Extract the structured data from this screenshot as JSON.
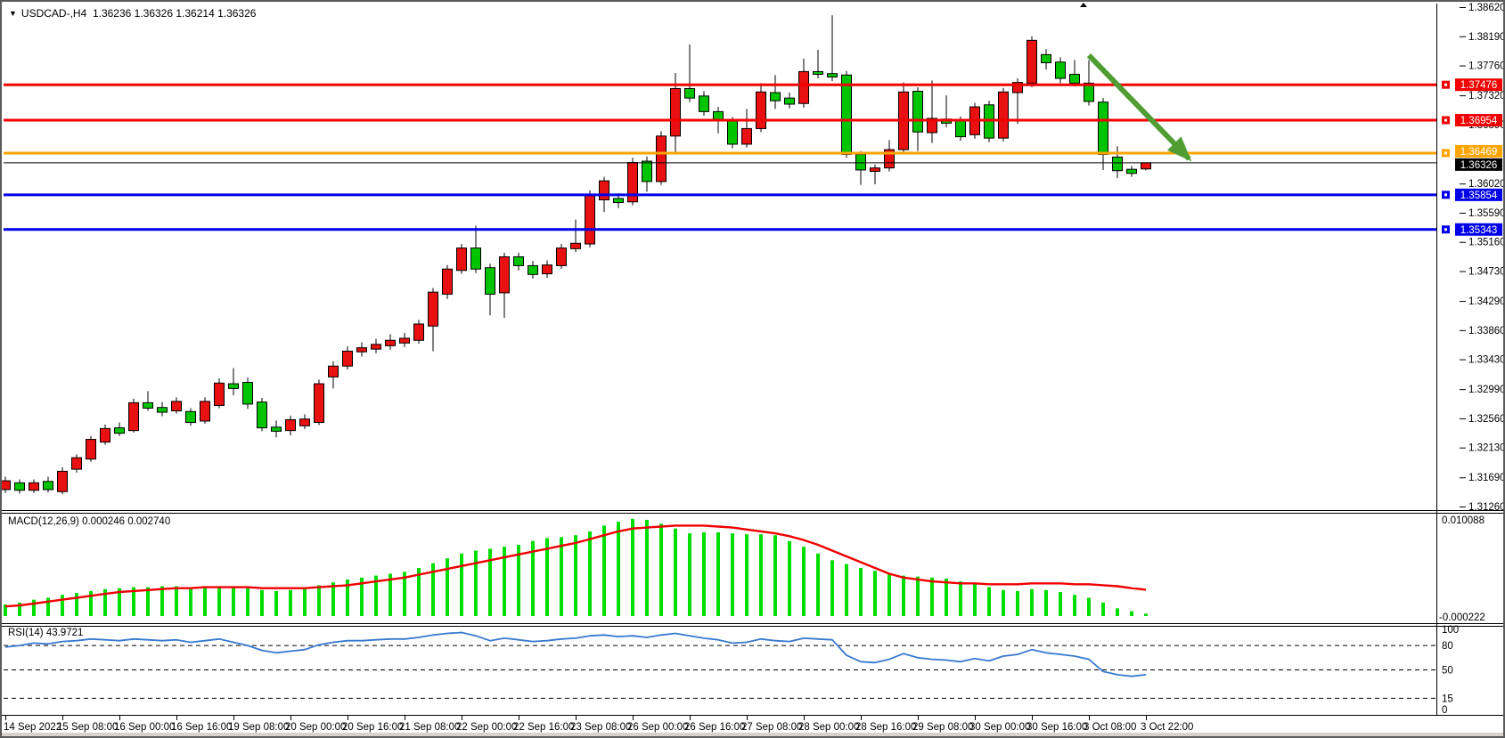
{
  "header": {
    "symbol": "USDCAD-,H4",
    "ohlc": "1.36236 1.36326 1.36214 1.36326"
  },
  "indicators": {
    "macd": {
      "label": "MACD(12,26,9) 0.000246 0.002740",
      "scale_max": "0.010088",
      "scale_min": "-0.000222"
    },
    "rsi": {
      "label": "RSI(14) 43.9721",
      "axis_labels": [
        "100",
        "80",
        "50",
        "15",
        "0"
      ],
      "level_lines": [
        80,
        50,
        15
      ]
    }
  },
  "colors": {
    "bull_candle": "#e81010",
    "bear_candle": "#00c400",
    "candle_border": "#000000",
    "macd_bar": "#00dd00",
    "macd_signal": "#f00000",
    "rsi_line": "#3779cf",
    "resistance_line": "#f00000",
    "pivot_line": "#ffa500",
    "support_line": "#0000e8",
    "bid_line": "#000000",
    "arrow": "#4f9d33"
  },
  "chart_data": {
    "type": "candlestick",
    "title": "USDCAD-,H4",
    "timeframe": "H4",
    "price_axis": {
      "max": 1.3862,
      "min": 1.3126,
      "tick_labels": [
        "1.38620",
        "1.38190",
        "1.37760",
        "1.37320",
        "1.36890",
        "1.36020",
        "1.35590",
        "1.35160",
        "1.34730",
        "1.34290",
        "1.33860",
        "1.33430",
        "1.32990",
        "1.32560",
        "1.32130",
        "1.31690",
        "1.31260"
      ]
    },
    "time_axis": {
      "labels": [
        "14 Sep 2022",
        "15 Sep 08:00",
        "16 Sep 00:00",
        "16 Sep 16:00",
        "19 Sep 08:00",
        "20 Sep 00:00",
        "20 Sep 16:00",
        "21 Sep 08:00",
        "22 Sep 00:00",
        "22 Sep 16:00",
        "23 Sep 08:00",
        "26 Sep 00:00",
        "26 Sep 16:00",
        "27 Sep 08:00",
        "28 Sep 00:00",
        "28 Sep 16:00",
        "29 Sep 08:00",
        "30 Sep 00:00",
        "30 Sep 16:00",
        "3 Oct 08:00",
        "3 Oct 22:00"
      ],
      "candles_per_tick": 4
    },
    "hlines": [
      {
        "price": 1.37476,
        "label": "1.37476",
        "role": "resistance",
        "width": 3,
        "handle": true
      },
      {
        "price": 1.36954,
        "label": "1.36954",
        "role": "resistance",
        "width": 3,
        "handle": true
      },
      {
        "price": 1.36469,
        "label": "1.36469",
        "role": "pivot",
        "width": 3,
        "handle": true
      },
      {
        "price": 1.36326,
        "label": "1.36326",
        "role": "bid",
        "width": 1,
        "handle": false
      },
      {
        "price": 1.35854,
        "label": "1.35854",
        "role": "support",
        "width": 3,
        "handle": true
      },
      {
        "price": 1.35343,
        "label": "1.35343",
        "role": "support",
        "width": 3,
        "handle": true
      }
    ],
    "arrow": {
      "from_index": 76.0,
      "from_price": 1.3791,
      "to_index": 83.4,
      "to_price": 1.3632
    },
    "candles": [
      [
        1.3151,
        1.317,
        1.3146,
        1.3164
      ],
      [
        1.3161,
        1.3166,
        1.3145,
        1.315
      ],
      [
        1.315,
        1.3166,
        1.3146,
        1.3161
      ],
      [
        1.3163,
        1.317,
        1.3147,
        1.3151
      ],
      [
        1.3148,
        1.3184,
        1.3144,
        1.3178
      ],
      [
        1.3181,
        1.3203,
        1.3176,
        1.3198
      ],
      [
        1.3196,
        1.323,
        1.3192,
        1.3225
      ],
      [
        1.3221,
        1.3247,
        1.3217,
        1.3241
      ],
      [
        1.3242,
        1.325,
        1.323,
        1.3234
      ],
      [
        1.3238,
        1.3285,
        1.3235,
        1.3279
      ],
      [
        1.3279,
        1.3296,
        1.3267,
        1.3271
      ],
      [
        1.3272,
        1.328,
        1.3259,
        1.3265
      ],
      [
        1.3267,
        1.3287,
        1.3263,
        1.3281
      ],
      [
        1.3266,
        1.3271,
        1.3245,
        1.325
      ],
      [
        1.3252,
        1.3287,
        1.3248,
        1.3281
      ],
      [
        1.3275,
        1.3315,
        1.3271,
        1.3308
      ],
      [
        1.3307,
        1.333,
        1.329,
        1.33
      ],
      [
        1.3309,
        1.3316,
        1.327,
        1.3277
      ],
      [
        1.328,
        1.3286,
        1.3237,
        1.3242
      ],
      [
        1.3243,
        1.3253,
        1.3228,
        1.3237
      ],
      [
        1.3238,
        1.326,
        1.3231,
        1.3254
      ],
      [
        1.3245,
        1.3262,
        1.324,
        1.3255
      ],
      [
        1.325,
        1.3313,
        1.3246,
        1.3307
      ],
      [
        1.3317,
        1.334,
        1.33,
        1.3333
      ],
      [
        1.3333,
        1.3362,
        1.3328,
        1.3355
      ],
      [
        1.3354,
        1.3368,
        1.3347,
        1.336
      ],
      [
        1.3358,
        1.3373,
        1.3352,
        1.3365
      ],
      [
        1.3363,
        1.338,
        1.3357,
        1.3371
      ],
      [
        1.3367,
        1.3382,
        1.3361,
        1.3374
      ],
      [
        1.3371,
        1.3401,
        1.3366,
        1.3395
      ],
      [
        1.3392,
        1.3448,
        1.3355,
        1.3442
      ],
      [
        1.3439,
        1.3482,
        1.3432,
        1.3476
      ],
      [
        1.3474,
        1.3513,
        1.3469,
        1.3507
      ],
      [
        1.3507,
        1.354,
        1.347,
        1.3476
      ],
      [
        1.3478,
        1.3484,
        1.3408,
        1.3439
      ],
      [
        1.3441,
        1.35,
        1.3404,
        1.3494
      ],
      [
        1.3494,
        1.35,
        1.3474,
        1.3481
      ],
      [
        1.3481,
        1.3488,
        1.3462,
        1.3468
      ],
      [
        1.3469,
        1.3489,
        1.3463,
        1.3482
      ],
      [
        1.3481,
        1.3513,
        1.3476,
        1.3507
      ],
      [
        1.3506,
        1.3549,
        1.3501,
        1.3514
      ],
      [
        1.3513,
        1.3592,
        1.3508,
        1.3585
      ],
      [
        1.3578,
        1.3612,
        1.356,
        1.3606
      ],
      [
        1.358,
        1.3588,
        1.3566,
        1.3574
      ],
      [
        1.3575,
        1.364,
        1.357,
        1.3633
      ],
      [
        1.3635,
        1.3642,
        1.359,
        1.3605
      ],
      [
        1.3605,
        1.3679,
        1.36,
        1.3672
      ],
      [
        1.3672,
        1.3765,
        1.3645,
        1.3742
      ],
      [
        1.3742,
        1.3807,
        1.3722,
        1.3728
      ],
      [
        1.3731,
        1.3738,
        1.3702,
        1.3708
      ],
      [
        1.3708,
        1.3715,
        1.3676,
        1.3695
      ],
      [
        1.3694,
        1.37,
        1.3654,
        1.366
      ],
      [
        1.366,
        1.3712,
        1.3655,
        1.3683
      ],
      [
        1.3683,
        1.375,
        1.3678,
        1.3737
      ],
      [
        1.3736,
        1.3762,
        1.3712,
        1.3724
      ],
      [
        1.3728,
        1.3736,
        1.3713,
        1.3719
      ],
      [
        1.372,
        1.3786,
        1.3714,
        1.3767
      ],
      [
        1.3767,
        1.3799,
        1.3757,
        1.3763
      ],
      [
        1.3764,
        1.385,
        1.3753,
        1.3759
      ],
      [
        1.3762,
        1.3768,
        1.364,
        1.3645
      ],
      [
        1.3645,
        1.365,
        1.36,
        1.3622
      ],
      [
        1.362,
        1.363,
        1.3601,
        1.3625
      ],
      [
        1.3625,
        1.3666,
        1.362,
        1.3652
      ],
      [
        1.3652,
        1.3751,
        1.3648,
        1.3737
      ],
      [
        1.3738,
        1.3744,
        1.365,
        1.3678
      ],
      [
        1.3677,
        1.3754,
        1.3662,
        1.3698
      ],
      [
        1.3697,
        1.3732,
        1.3685,
        1.3691
      ],
      [
        1.3695,
        1.3701,
        1.3665,
        1.3671
      ],
      [
        1.3674,
        1.3721,
        1.3668,
        1.3715
      ],
      [
        1.3718,
        1.3724,
        1.3663,
        1.3669
      ],
      [
        1.3669,
        1.3743,
        1.3664,
        1.3737
      ],
      [
        1.3736,
        1.3757,
        1.369,
        1.3751
      ],
      [
        1.375,
        1.3819,
        1.3744,
        1.3813
      ],
      [
        1.3792,
        1.38,
        1.377,
        1.378
      ],
      [
        1.3781,
        1.3788,
        1.375,
        1.3757
      ],
      [
        1.3763,
        1.3784,
        1.3745,
        1.375
      ],
      [
        1.375,
        1.3784,
        1.3717,
        1.3723
      ],
      [
        1.3722,
        1.3728,
        1.3622,
        1.3645
      ],
      [
        1.3641,
        1.3657,
        1.361,
        1.3621
      ],
      [
        1.3623,
        1.3628,
        1.3612,
        1.3617
      ],
      [
        1.36236,
        1.36326,
        1.36214,
        1.36326
      ]
    ],
    "macd": {
      "params": "12,26,9",
      "current_macd": 0.000246,
      "current_signal": 0.00274,
      "scale_max": 0.010088,
      "scale_min": -0.000222,
      "histogram": [
        0.0012,
        0.0014,
        0.0017,
        0.0019,
        0.0022,
        0.0024,
        0.0026,
        0.0028,
        0.0029,
        0.003,
        0.003,
        0.0031,
        0.0031,
        0.003,
        0.003,
        0.0031,
        0.003,
        0.0029,
        0.0027,
        0.0026,
        0.0027,
        0.0029,
        0.0032,
        0.0035,
        0.0038,
        0.004,
        0.0042,
        0.0044,
        0.0046,
        0.005,
        0.0055,
        0.006,
        0.0065,
        0.0068,
        0.007,
        0.0072,
        0.0074,
        0.0078,
        0.0081,
        0.0082,
        0.0084,
        0.0088,
        0.0094,
        0.0098,
        0.0101,
        0.01,
        0.0096,
        0.0091,
        0.0086,
        0.0087,
        0.0087,
        0.0086,
        0.0085,
        0.0085,
        0.0084,
        0.0078,
        0.0072,
        0.0065,
        0.0058,
        0.0054,
        0.005,
        0.0047,
        0.0044,
        0.0042,
        0.0041,
        0.004,
        0.0039,
        0.0036,
        0.0033,
        0.003,
        0.0027,
        0.0026,
        0.0028,
        0.0027,
        0.0025,
        0.0022,
        0.0019,
        0.0014,
        0.0008,
        0.0005,
        0.000246
      ],
      "signal": [
        0.001,
        0.0011,
        0.0013,
        0.0015,
        0.0017,
        0.0019,
        0.0021,
        0.0023,
        0.0025,
        0.0026,
        0.0027,
        0.0028,
        0.0029,
        0.0029,
        0.003,
        0.003,
        0.003,
        0.003,
        0.0029,
        0.0029,
        0.0029,
        0.0029,
        0.003,
        0.0031,
        0.0032,
        0.0034,
        0.0036,
        0.0038,
        0.004,
        0.0043,
        0.0046,
        0.0049,
        0.0052,
        0.0055,
        0.0058,
        0.0061,
        0.0064,
        0.0067,
        0.007,
        0.0073,
        0.0076,
        0.008,
        0.0084,
        0.0088,
        0.0091,
        0.0092,
        0.0093,
        0.0094,
        0.0094,
        0.0094,
        0.0093,
        0.0092,
        0.009,
        0.0088,
        0.0086,
        0.0083,
        0.0079,
        0.0074,
        0.0068,
        0.0062,
        0.0056,
        0.005,
        0.0044,
        0.004,
        0.0038,
        0.0036,
        0.0035,
        0.0034,
        0.0034,
        0.0033,
        0.0033,
        0.0033,
        0.0034,
        0.0034,
        0.0034,
        0.0033,
        0.0033,
        0.0032,
        0.0031,
        0.0029,
        0.00274
      ]
    },
    "rsi": {
      "period": 14,
      "current": 43.9721,
      "values": [
        78,
        80,
        83,
        82,
        85,
        86,
        88,
        87,
        86,
        88,
        87,
        86,
        87,
        84,
        86,
        88,
        84,
        80,
        74,
        71,
        73,
        75,
        81,
        84,
        86,
        86,
        87,
        88,
        88,
        90,
        93,
        95,
        96,
        92,
        86,
        89,
        87,
        85,
        86,
        88,
        89,
        92,
        93,
        91,
        92,
        90,
        93,
        95,
        92,
        89,
        87,
        83,
        84,
        88,
        86,
        85,
        89,
        88,
        87,
        68,
        60,
        59,
        63,
        70,
        65,
        63,
        62,
        60,
        64,
        61,
        67,
        69,
        75,
        71,
        69,
        67,
        63,
        48,
        44,
        42,
        43.9721
      ]
    }
  }
}
